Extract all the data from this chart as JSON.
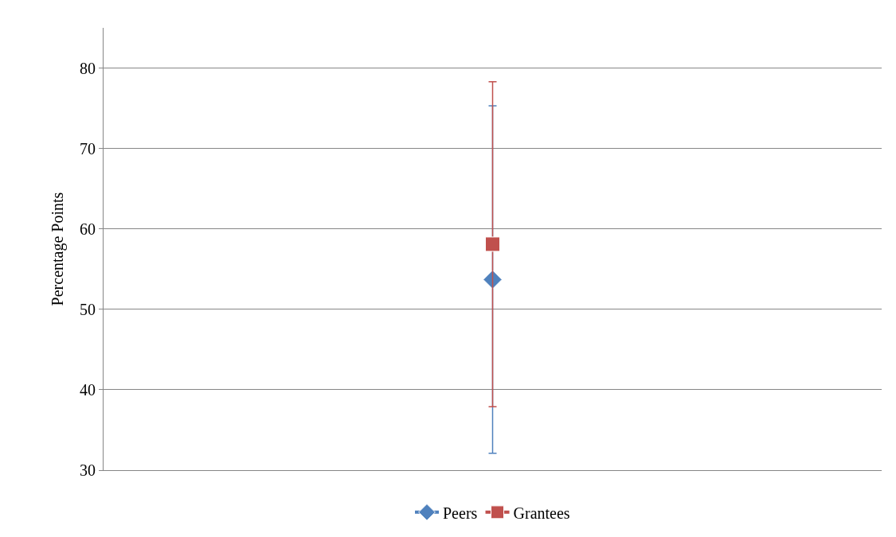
{
  "chart_data": {
    "type": "line",
    "ylabel": "Percentage Points",
    "categories": [
      null
    ],
    "series": [
      {
        "name": "Peers",
        "color": "#4f81bd",
        "values": [
          53.7
        ],
        "errors": [
          21.6
        ],
        "marker": "diamond"
      },
      {
        "name": "Grantees",
        "color": "#c0504d",
        "values": [
          58.1
        ],
        "errors": [
          20.2
        ],
        "marker": "square"
      }
    ],
    "ylim": [
      30,
      85
    ],
    "yticks": [
      30,
      40,
      50,
      60,
      70,
      80
    ],
    "grid": "y",
    "legend": "bottom",
    "tick_labels": "y"
  }
}
